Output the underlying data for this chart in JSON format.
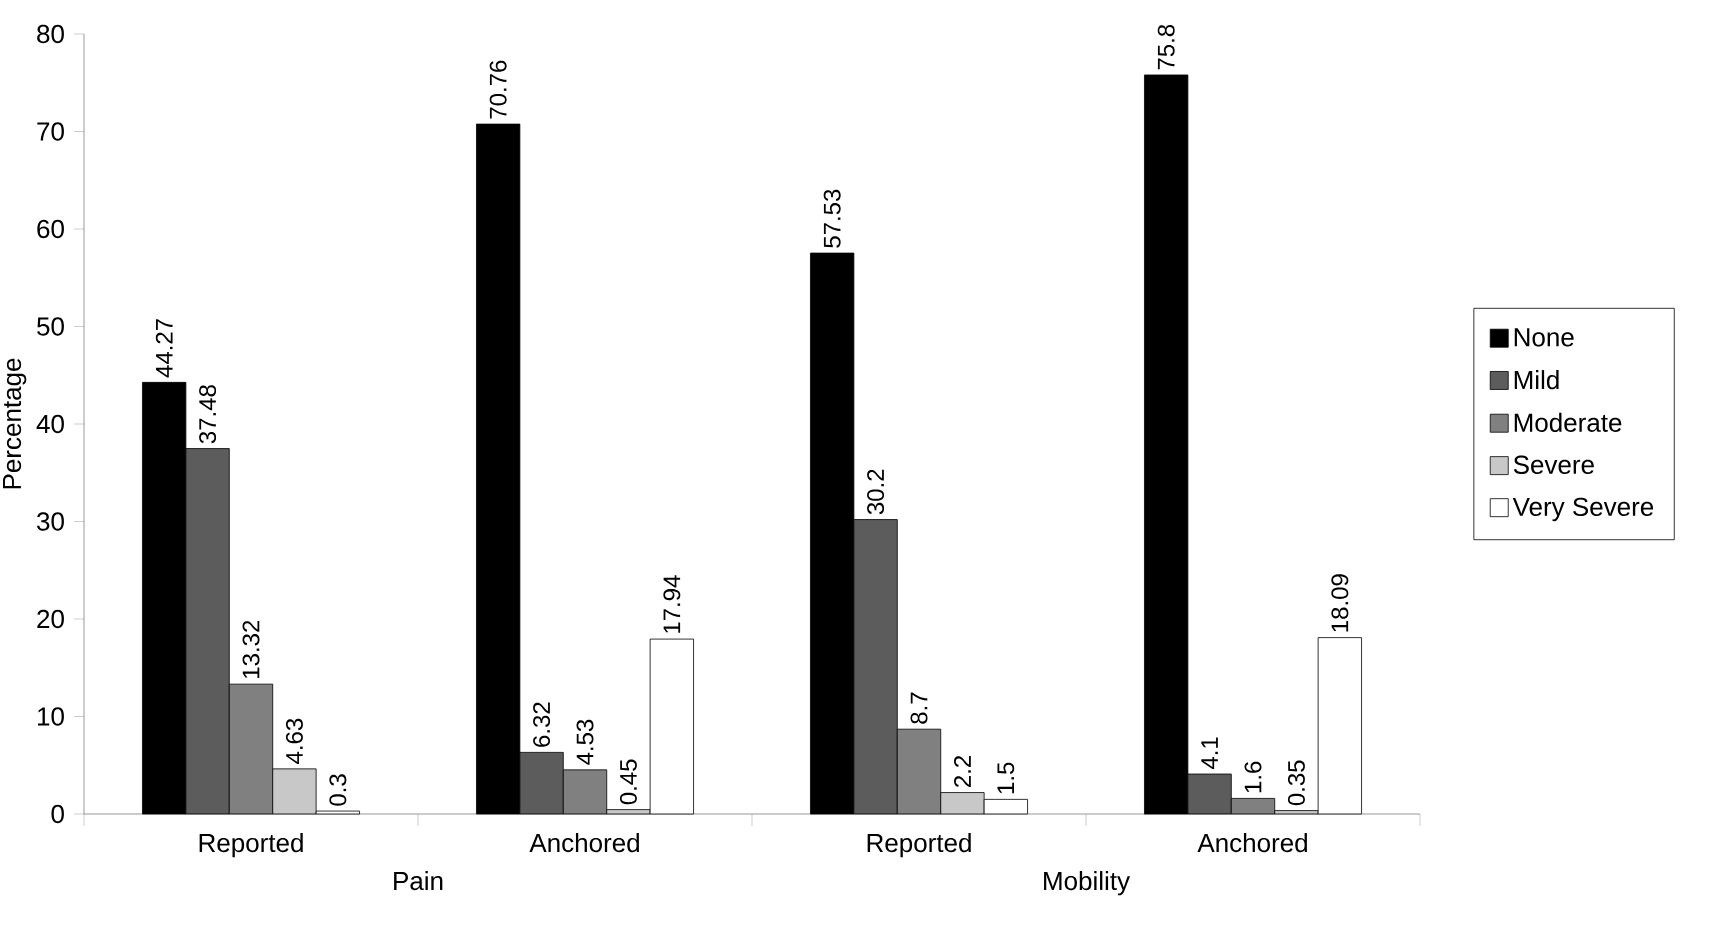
{
  "chart_data": {
    "type": "bar",
    "ylabel": "Percentage",
    "categories": [
      "Reported",
      "Anchored",
      "Reported",
      "Anchored"
    ],
    "annotations": [
      "Pain",
      "Mobility"
    ],
    "series": [
      {
        "name": "None",
        "color": "#000000",
        "values": [
          44.27,
          70.76,
          57.53,
          75.8
        ]
      },
      {
        "name": "Mild",
        "color": "#5c5c5c",
        "values": [
          37.48,
          6.32,
          30.2,
          4.1
        ]
      },
      {
        "name": "Moderate",
        "color": "#808080",
        "values": [
          13.32,
          4.53,
          8.7,
          1.6
        ]
      },
      {
        "name": "Severe",
        "color": "#c8c8c8",
        "values": [
          4.63,
          0.45,
          2.2,
          0.35
        ]
      },
      {
        "name": "Very Severe",
        "color": "#ffffff",
        "values": [
          0.3,
          17.94,
          1.5,
          18.09
        ]
      }
    ],
    "ylim": [
      0,
      80
    ],
    "yticks": [
      0,
      10,
      20,
      30,
      40,
      50,
      60,
      70,
      80
    ],
    "data_labels": true,
    "legend": "right",
    "grid": false
  }
}
